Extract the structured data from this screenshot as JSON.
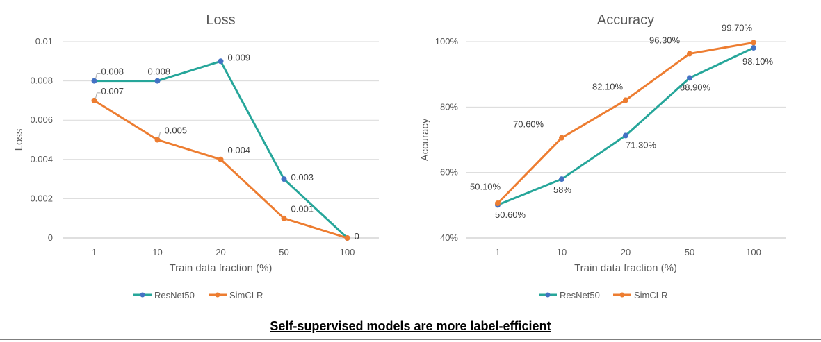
{
  "chart_data": [
    {
      "type": "line",
      "title": "Loss",
      "xlabel": "Train data fraction (%)",
      "ylabel": "Loss",
      "categories": [
        "1",
        "10",
        "20",
        "50",
        "100"
      ],
      "yticks": [
        "0",
        "0.002",
        "0.004",
        "0.006",
        "0.008",
        "0.01"
      ],
      "ylim": [
        0,
        0.01
      ],
      "grid": true,
      "legend_position": "bottom",
      "series": [
        {
          "name": "ResNet50",
          "color": "#26A69A",
          "marker_color": "#4472C4",
          "values": [
            0.008,
            0.008,
            0.009,
            0.003,
            0
          ],
          "labels": [
            "0.008",
            "0.008",
            "0.009",
            "0.003",
            "0"
          ]
        },
        {
          "name": "SimCLR",
          "color": "#ED7D31",
          "marker_color": "#ED7D31",
          "values": [
            0.007,
            0.005,
            0.004,
            0.001,
            0
          ],
          "labels": [
            "0.007",
            "0.005",
            "0.004",
            "0.001",
            "0"
          ]
        }
      ]
    },
    {
      "type": "line",
      "title": "Accuracy",
      "xlabel": "Train data fraction (%)",
      "ylabel": "Accuracy",
      "categories": [
        "1",
        "10",
        "20",
        "50",
        "100"
      ],
      "yticks": [
        "40%",
        "60%",
        "80%",
        "100%"
      ],
      "ylim": [
        40,
        100
      ],
      "grid": true,
      "legend_position": "bottom",
      "series": [
        {
          "name": "ResNet50",
          "color": "#26A69A",
          "marker_color": "#4472C4",
          "values": [
            50.1,
            58,
            71.3,
            88.9,
            98.1
          ],
          "labels": [
            "50.10%",
            "58%",
            "71.30%",
            "88.90%",
            "98.10%"
          ]
        },
        {
          "name": "SimCLR",
          "color": "#ED7D31",
          "marker_color": "#ED7D31",
          "values": [
            50.6,
            70.6,
            82.1,
            96.3,
            99.7
          ],
          "labels": [
            "50.60%",
            "70.60%",
            "82.10%",
            "96.30%",
            "99.70%"
          ]
        }
      ]
    }
  ],
  "caption": "Self-supervised models are more label-efficient"
}
